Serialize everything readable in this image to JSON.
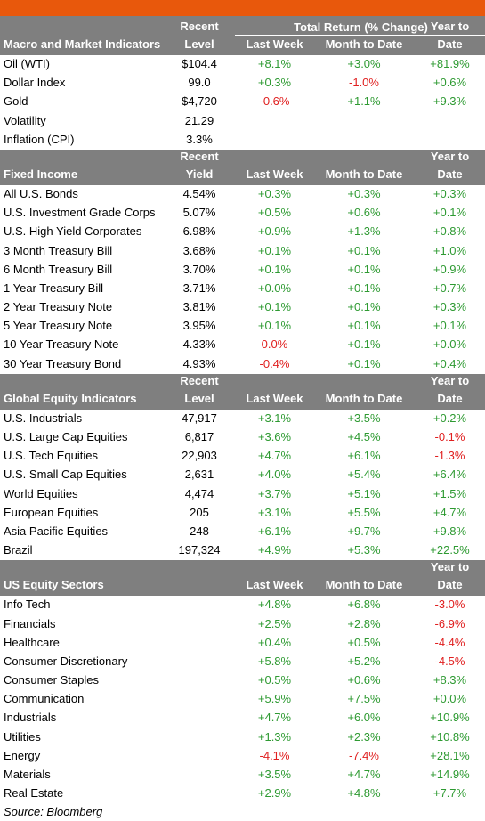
{
  "header": {
    "total_return_title": "Total Return (% Change)"
  },
  "sections": [
    {
      "title": "Macro and Market Indicators",
      "col1": [
        "Recent",
        "Level"
      ],
      "col2": "Last Week",
      "col3": "Month to Date",
      "col4": [
        "Year to",
        "Date"
      ],
      "rows": [
        {
          "name": "Oil (WTI)",
          "level": "$104.4",
          "week": "+8.1%",
          "mtd": "+3.0%",
          "ytd": "+81.9%"
        },
        {
          "name": "Dollar Index",
          "level": "99.0",
          "week": "+0.3%",
          "mtd": "-1.0%",
          "ytd": "+0.6%"
        },
        {
          "name": "Gold",
          "level": "$4,720",
          "week": "-0.6%",
          "mtd": "+1.1%",
          "ytd": "+9.3%"
        },
        {
          "name": "Volatility",
          "level": "21.29",
          "week": "",
          "mtd": "",
          "ytd": ""
        },
        {
          "name": "Inflation (CPI)",
          "level": "3.3%",
          "week": "",
          "mtd": "",
          "ytd": ""
        }
      ]
    },
    {
      "title": "Fixed Income",
      "col1": [
        "Recent",
        "Yield"
      ],
      "col2": "Last Week",
      "col3": "Month to Date",
      "col4": [
        "Year to",
        "Date"
      ],
      "rows": [
        {
          "name": "All U.S. Bonds",
          "level": "4.54%",
          "week": "+0.3%",
          "mtd": "+0.3%",
          "ytd": "+0.3%"
        },
        {
          "name": "U.S. Investment Grade Corps",
          "level": "5.07%",
          "week": "+0.5%",
          "mtd": "+0.6%",
          "ytd": "+0.1%"
        },
        {
          "name": "U.S. High Yield Corporates",
          "level": "6.98%",
          "week": "+0.9%",
          "mtd": "+1.3%",
          "ytd": "+0.8%"
        },
        {
          "name": "3 Month Treasury Bill",
          "level": "3.68%",
          "week": "+0.1%",
          "mtd": "+0.1%",
          "ytd": "+1.0%"
        },
        {
          "name": "6 Month Treasury Bill",
          "level": "3.70%",
          "week": "+0.1%",
          "mtd": "+0.1%",
          "ytd": "+0.9%"
        },
        {
          "name": "1 Year Treasury Bill",
          "level": "3.71%",
          "week": "+0.0%",
          "mtd": "+0.1%",
          "ytd": "+0.7%"
        },
        {
          "name": "2 Year Treasury Note",
          "level": "3.81%",
          "week": "+0.1%",
          "mtd": "+0.1%",
          "ytd": "+0.3%"
        },
        {
          "name": "5 Year Treasury Note",
          "level": "3.95%",
          "week": "+0.1%",
          "mtd": "+0.1%",
          "ytd": "+0.1%"
        },
        {
          "name": "10 Year Treasury Note",
          "level": "4.33%",
          "week": "0.0%",
          "mtd": "+0.1%",
          "ytd": "+0.0%"
        },
        {
          "name": "30 Year Treasury Bond",
          "level": "4.93%",
          "week": "-0.4%",
          "mtd": "+0.1%",
          "ytd": "+0.4%"
        }
      ]
    },
    {
      "title": "Global Equity Indicators",
      "col1": [
        "Recent",
        "Level"
      ],
      "col2": "Last Week",
      "col3": "Month to Date",
      "col4": [
        "Year to",
        "Date"
      ],
      "rows": [
        {
          "name": "U.S. Industrials",
          "level": "47,917",
          "week": "+3.1%",
          "mtd": "+3.5%",
          "ytd": "+0.2%"
        },
        {
          "name": "U.S. Large Cap Equities",
          "level": "6,817",
          "week": "+3.6%",
          "mtd": "+4.5%",
          "ytd": "-0.1%"
        },
        {
          "name": "U.S. Tech Equities",
          "level": "22,903",
          "week": "+4.7%",
          "mtd": "+6.1%",
          "ytd": "-1.3%"
        },
        {
          "name": "U.S. Small Cap Equities",
          "level": "2,631",
          "week": "+4.0%",
          "mtd": "+5.4%",
          "ytd": "+6.4%"
        },
        {
          "name": "World Equities",
          "level": "4,474",
          "week": "+3.7%",
          "mtd": "+5.1%",
          "ytd": "+1.5%"
        },
        {
          "name": "European Equities",
          "level": "205",
          "week": "+3.1%",
          "mtd": "+5.5%",
          "ytd": "+4.7%"
        },
        {
          "name": "Asia Pacific Equities",
          "level": "248",
          "week": "+6.1%",
          "mtd": "+9.7%",
          "ytd": "+9.8%"
        },
        {
          "name": "Brazil",
          "level": "197,324",
          "week": "+4.9%",
          "mtd": "+5.3%",
          "ytd": "+22.5%"
        }
      ]
    },
    {
      "title": "US Equity Sectors",
      "col1": [
        "",
        ""
      ],
      "col2": "Last Week",
      "col3": "Month to Date",
      "col4": [
        "Year to",
        "Date"
      ],
      "rows": [
        {
          "name": "Info Tech",
          "level": "",
          "week": "+4.8%",
          "mtd": "+6.8%",
          "ytd": "-3.0%"
        },
        {
          "name": "Financials",
          "level": "",
          "week": "+2.5%",
          "mtd": "+2.8%",
          "ytd": "-6.9%"
        },
        {
          "name": "Healthcare",
          "level": "",
          "week": "+0.4%",
          "mtd": "+0.5%",
          "ytd": "-4.4%"
        },
        {
          "name": "Consumer Discretionary",
          "level": "",
          "week": "+5.8%",
          "mtd": "+5.2%",
          "ytd": "-4.5%"
        },
        {
          "name": "Consumer Staples",
          "level": "",
          "week": "+0.5%",
          "mtd": "+0.6%",
          "ytd": "+8.3%"
        },
        {
          "name": "Communication",
          "level": "",
          "week": "+5.9%",
          "mtd": "+7.5%",
          "ytd": "+0.0%"
        },
        {
          "name": "Industrials",
          "level": "",
          "week": "+4.7%",
          "mtd": "+6.0%",
          "ytd": "+10.9%"
        },
        {
          "name": "Utilities",
          "level": "",
          "week": "+1.3%",
          "mtd": "+2.3%",
          "ytd": "+10.8%"
        },
        {
          "name": "Energy",
          "level": "",
          "week": "-4.1%",
          "mtd": "-7.4%",
          "ytd": "+28.1%"
        },
        {
          "name": "Materials",
          "level": "",
          "week": "+3.5%",
          "mtd": "+4.7%",
          "ytd": "+14.9%"
        },
        {
          "name": "Real Estate",
          "level": "",
          "week": "+2.9%",
          "mtd": "+4.8%",
          "ytd": "+7.7%"
        }
      ]
    }
  ],
  "footer": {
    "source": "Source: Bloomberg"
  },
  "colors": {
    "accent_bar": "#e8580c",
    "header_bg": "#7f7f7f",
    "positive": "#2e9a32",
    "negative": "#e02020"
  }
}
